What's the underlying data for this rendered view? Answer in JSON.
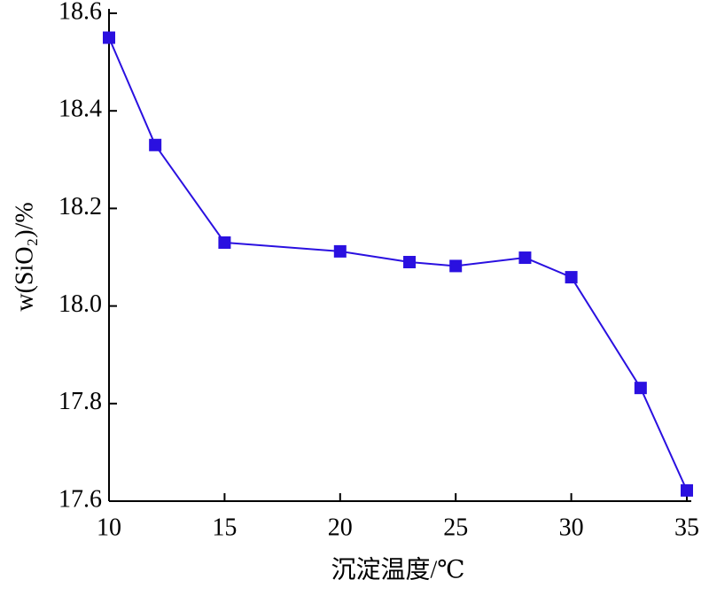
{
  "chart_data": {
    "type": "line",
    "xlabel": "沉淀温度/℃",
    "ylabel": "w(SiO₂)/%",
    "x": [
      10,
      12,
      15,
      20,
      23,
      25,
      28,
      30,
      33,
      35
    ],
    "series": [
      {
        "color": "#2a10e0",
        "values": [
          18.55,
          18.33,
          18.13,
          18.112,
          18.09,
          18.082,
          18.099,
          18.059,
          17.832,
          17.622
        ]
      }
    ],
    "xlim": [
      10,
      35
    ],
    "xticks": [
      10,
      15,
      20,
      25,
      30,
      35
    ],
    "ylim": [
      17.6,
      18.6
    ],
    "yticks": [
      17.6,
      17.8,
      {
        "value": 18,
        "label": "18.0"
      },
      18.2,
      18.4,
      18.6
    ],
    "grid": false
  }
}
